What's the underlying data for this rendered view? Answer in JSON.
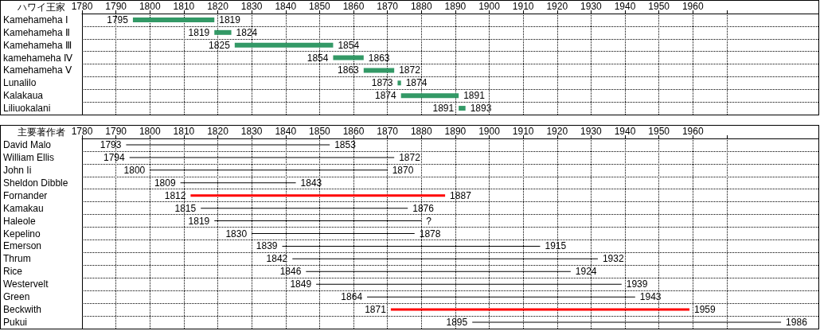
{
  "chart_data": [
    {
      "type": "bar",
      "orientation": "horizontal",
      "ylabel": "ハワイ王家",
      "categories": [
        "Kamehameha Ⅰ",
        "Kamehameha Ⅱ",
        "Kamehameha Ⅲ",
        "kamehameha Ⅳ",
        "Kamehameha Ⅴ",
        "Lunalilo",
        "Kalakaua",
        "Liliuokalani"
      ],
      "base": [
        1795,
        1819,
        1825,
        1854,
        1863,
        1873,
        1874,
        1891
      ],
      "values": [
        24,
        5,
        29,
        9,
        9,
        1,
        17,
        2
      ],
      "color": "#339966",
      "xlim": [
        1780,
        1997
      ],
      "xticks": [
        1780,
        1790,
        1800,
        1810,
        1820,
        1830,
        1840,
        1850,
        1860,
        1870,
        1880,
        1890,
        1900,
        1910,
        1920,
        1930,
        1940,
        1950,
        1960,
        {
          "value": 1970,
          "label": null
        }
      ],
      "grid": true,
      "annotations": [
        {
          "text": "1795",
          "x": 1795,
          "y": "Kamehameha Ⅰ"
        },
        {
          "text": "1819",
          "x": 1819,
          "y": "Kamehameha Ⅰ"
        },
        {
          "text": "1819",
          "x": 1819,
          "y": "Kamehameha Ⅱ"
        },
        {
          "text": "1824",
          "x": 1824,
          "y": "Kamehameha Ⅱ"
        },
        {
          "text": "1825",
          "x": 1825,
          "y": "Kamehameha Ⅲ"
        },
        {
          "text": "1854",
          "x": 1854,
          "y": "Kamehameha Ⅲ"
        },
        {
          "text": "1854",
          "x": 1854,
          "y": "kamehameha Ⅳ"
        },
        {
          "text": "1863",
          "x": 1863,
          "y": "kamehameha Ⅳ"
        },
        {
          "text": "1863",
          "x": 1863,
          "y": "Kamehameha Ⅴ"
        },
        {
          "text": "1872",
          "x": 1872,
          "y": "Kamehameha Ⅴ"
        },
        {
          "text": "1873",
          "x": 1873,
          "y": "Lunalilo"
        },
        {
          "text": "1874",
          "x": 1874,
          "y": "Lunalilo"
        },
        {
          "text": "1874",
          "x": 1874,
          "y": "Kalakaua"
        },
        {
          "text": "1891",
          "x": 1891,
          "y": "Kalakaua"
        },
        {
          "text": "1891",
          "x": 1891,
          "y": "Liliuokalani"
        },
        {
          "text": "1893",
          "x": 1893,
          "y": "Liliuokalani"
        }
      ]
    },
    {
      "type": "bar",
      "orientation": "horizontal",
      "ylabel": "主要著作者",
      "categories": [
        "David Malo",
        "William Ellis",
        "John Ii",
        "Sheldon Dibble",
        "Fornander",
        "Kamakau",
        "Haleole",
        "Kepelino",
        "Emerson",
        "Thrum",
        "Rice",
        "Westervelt",
        "Green",
        "Beckwith",
        "Pukui"
      ],
      "series": [
        {
          "color": "#000000",
          "base": [
            1793,
            1794,
            1800,
            1809,
            null,
            1815,
            1819,
            1830,
            1839,
            1842,
            1846,
            1849,
            1864,
            null,
            1895
          ],
          "values": [
            60,
            78,
            70,
            34,
            null,
            61,
            61,
            48,
            76,
            90,
            78,
            90,
            79,
            null,
            91
          ]
        },
        {
          "color": "#ff0000",
          "base": [
            null,
            null,
            null,
            null,
            1812,
            null,
            null,
            null,
            null,
            null,
            null,
            null,
            null,
            1871,
            null
          ],
          "values": [
            null,
            null,
            null,
            null,
            75,
            null,
            null,
            null,
            null,
            null,
            null,
            null,
            null,
            88,
            null
          ]
        }
      ],
      "xlim": [
        1780,
        1997
      ],
      "xticks": [
        1780,
        1790,
        1800,
        1810,
        1820,
        1830,
        1840,
        1850,
        1860,
        1870,
        1880,
        1890,
        1900,
        1910,
        1920,
        1930,
        1940,
        1950,
        1960,
        {
          "value": 1970,
          "label": null
        }
      ],
      "grid": true,
      "annotations": [
        {
          "text": "1793",
          "x": 1793,
          "y": "David Malo"
        },
        {
          "text": "1853",
          "x": 1853,
          "y": "David Malo"
        },
        {
          "text": "1794",
          "x": 1794,
          "y": "William Ellis"
        },
        {
          "text": "1872",
          "x": 1872,
          "y": "William Ellis"
        },
        {
          "text": "1800",
          "x": 1800,
          "y": "John Ii"
        },
        {
          "text": "1870",
          "x": 1870,
          "y": "John Ii"
        },
        {
          "text": "1809",
          "x": 1809,
          "y": "Sheldon Dibble"
        },
        {
          "text": "1843",
          "x": 1843,
          "y": "Sheldon Dibble"
        },
        {
          "text": "1812",
          "x": 1812,
          "y": "Fornander"
        },
        {
          "text": "1887",
          "x": 1887,
          "y": "Fornander"
        },
        {
          "text": "1815",
          "x": 1815,
          "y": "Kamakau"
        },
        {
          "text": "1876",
          "x": 1876,
          "y": "Kamakau"
        },
        {
          "text": "1819",
          "x": 1819,
          "y": "Haleole"
        },
        {
          "text": "?",
          "x": 1880,
          "y": "Haleole"
        },
        {
          "text": "1830",
          "x": 1830,
          "y": "Kepelino"
        },
        {
          "text": "1878",
          "x": 1878,
          "y": "Kepelino"
        },
        {
          "text": "1839",
          "x": 1839,
          "y": "Emerson"
        },
        {
          "text": "1915",
          "x": 1915,
          "y": "Emerson"
        },
        {
          "text": "1842",
          "x": 1842,
          "y": "Thrum"
        },
        {
          "text": "1932",
          "x": 1932,
          "y": "Thrum"
        },
        {
          "text": "1846",
          "x": 1846,
          "y": "Rice"
        },
        {
          "text": "1924",
          "x": 1924,
          "y": "Rice"
        },
        {
          "text": "1849",
          "x": 1849,
          "y": "Westervelt"
        },
        {
          "text": "1939",
          "x": 1939,
          "y": "Westervelt"
        },
        {
          "text": "1864",
          "x": 1864,
          "y": "Green"
        },
        {
          "text": "1943",
          "x": 1943,
          "y": "Green"
        },
        {
          "text": "1871",
          "x": 1871,
          "y": "Beckwith"
        },
        {
          "text": "1959",
          "x": 1959,
          "y": "Beckwith"
        },
        {
          "text": "1895",
          "x": 1895,
          "y": "Pukui"
        },
        {
          "text": "1986",
          "x": 1986,
          "y": "Pukui"
        }
      ]
    }
  ]
}
